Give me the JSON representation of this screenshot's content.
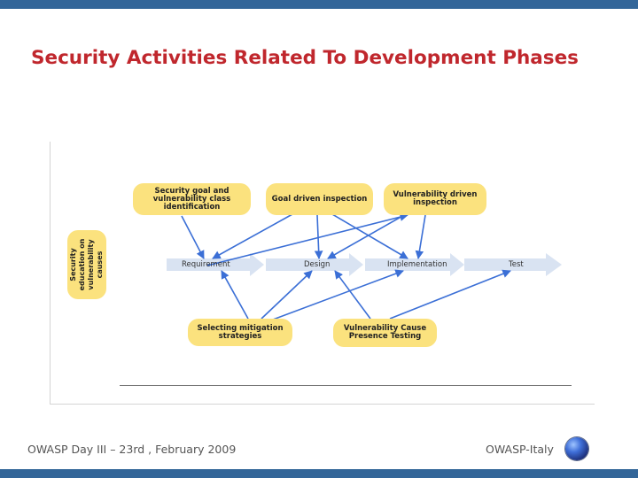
{
  "slide": {
    "title": "Security Activities Related To Development Phases"
  },
  "diagram": {
    "activities_top": [
      {
        "id": "goal",
        "label": "Security goal  and vulnerability class identification"
      },
      {
        "id": "inspect",
        "label": "Goal driven inspection"
      },
      {
        "id": "vuln_inspect",
        "label": "Vulnerability driven inspection"
      }
    ],
    "activities_bottom": [
      {
        "id": "mitigation",
        "label": "Selecting mitigation strategies"
      },
      {
        "id": "cause_test",
        "label": "Vulnerability Cause Presence Testing"
      }
    ],
    "side_activity": {
      "label": "Security education on vulnerability causes"
    },
    "phases": [
      "Requirement",
      "Design",
      "Implementation",
      "Test"
    ],
    "colors": {
      "activity_fill": "#fbe27e",
      "arrow": "#3b6fd6",
      "phase_arrow": "#d9e3f2"
    }
  },
  "footer": {
    "left": "OWASP Day  III – 23rd , February 2009",
    "right": "OWASP-Italy",
    "logo_icon": "globe-icon"
  }
}
